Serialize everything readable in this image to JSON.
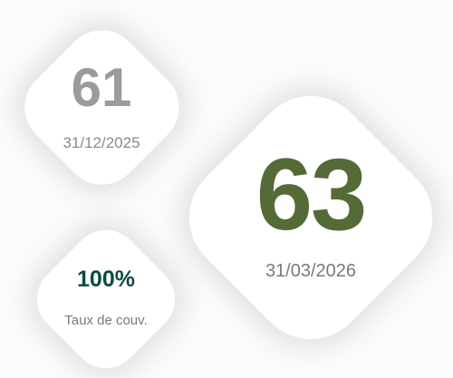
{
  "kpis": [
    {
      "value": "61",
      "date": "31/12/2025"
    },
    {
      "value": "63",
      "date": "31/03/2026"
    },
    {
      "value": "100%",
      "label": "Taux de couv."
    }
  ]
}
